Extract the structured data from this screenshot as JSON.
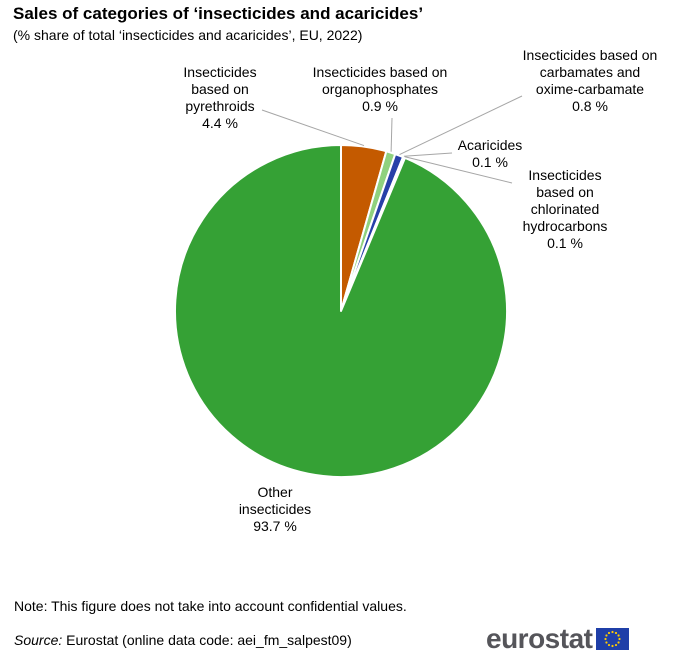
{
  "header": {
    "title": "Sales of categories of ‘insecticides and acaricides’",
    "subtitle": "(% share of total ‘insecticides and acaricides’, EU, 2022)"
  },
  "chart_data": {
    "type": "pie",
    "title": "Sales of categories of ‘insecticides and acaricides’",
    "subtitle": "(% share of total ‘insecticides and acaricides’, EU, 2022)",
    "slices": [
      {
        "label_lines": [
          "Insecticides",
          "based on",
          "pyrethroids"
        ],
        "value": 4.4,
        "value_label": "4.4 %",
        "color": "#c45a00"
      },
      {
        "label_lines": [
          "Insecticides based on",
          "organophosphates"
        ],
        "value": 0.9,
        "value_label": "0.9 %",
        "color": "#8fd17e"
      },
      {
        "label_lines": [
          "Insecticides based on",
          "carbamates and",
          "oxime-carbamate"
        ],
        "value": 0.8,
        "value_label": "0.8 %",
        "color": "#2740a8"
      },
      {
        "label_lines": [
          "Acaricides"
        ],
        "value": 0.1,
        "value_label": "0.1 %",
        "color": "#1f7a1f"
      },
      {
        "label_lines": [
          "Insecticides",
          "based on",
          "chlorinated",
          "hydrocarbons"
        ],
        "value": 0.1,
        "value_label": "0.1 %",
        "color": "#666666"
      },
      {
        "label_lines": [
          "Other",
          "insecticides"
        ],
        "value": 93.7,
        "value_label": "93.7 %",
        "color": "#35a135"
      }
    ],
    "start_angle_deg": 0,
    "direction": "clockwise",
    "slice_border_color": "#ffffff"
  },
  "footer": {
    "note": "Note: This figure does not take into account confidential values.",
    "source_prefix": "Source:",
    "source_text": " Eurostat (online data code: aei_fm_salpest09)",
    "logo_text": "eurostat",
    "flag_color": "#1f3fa8",
    "star_color": "#ffcc00"
  }
}
